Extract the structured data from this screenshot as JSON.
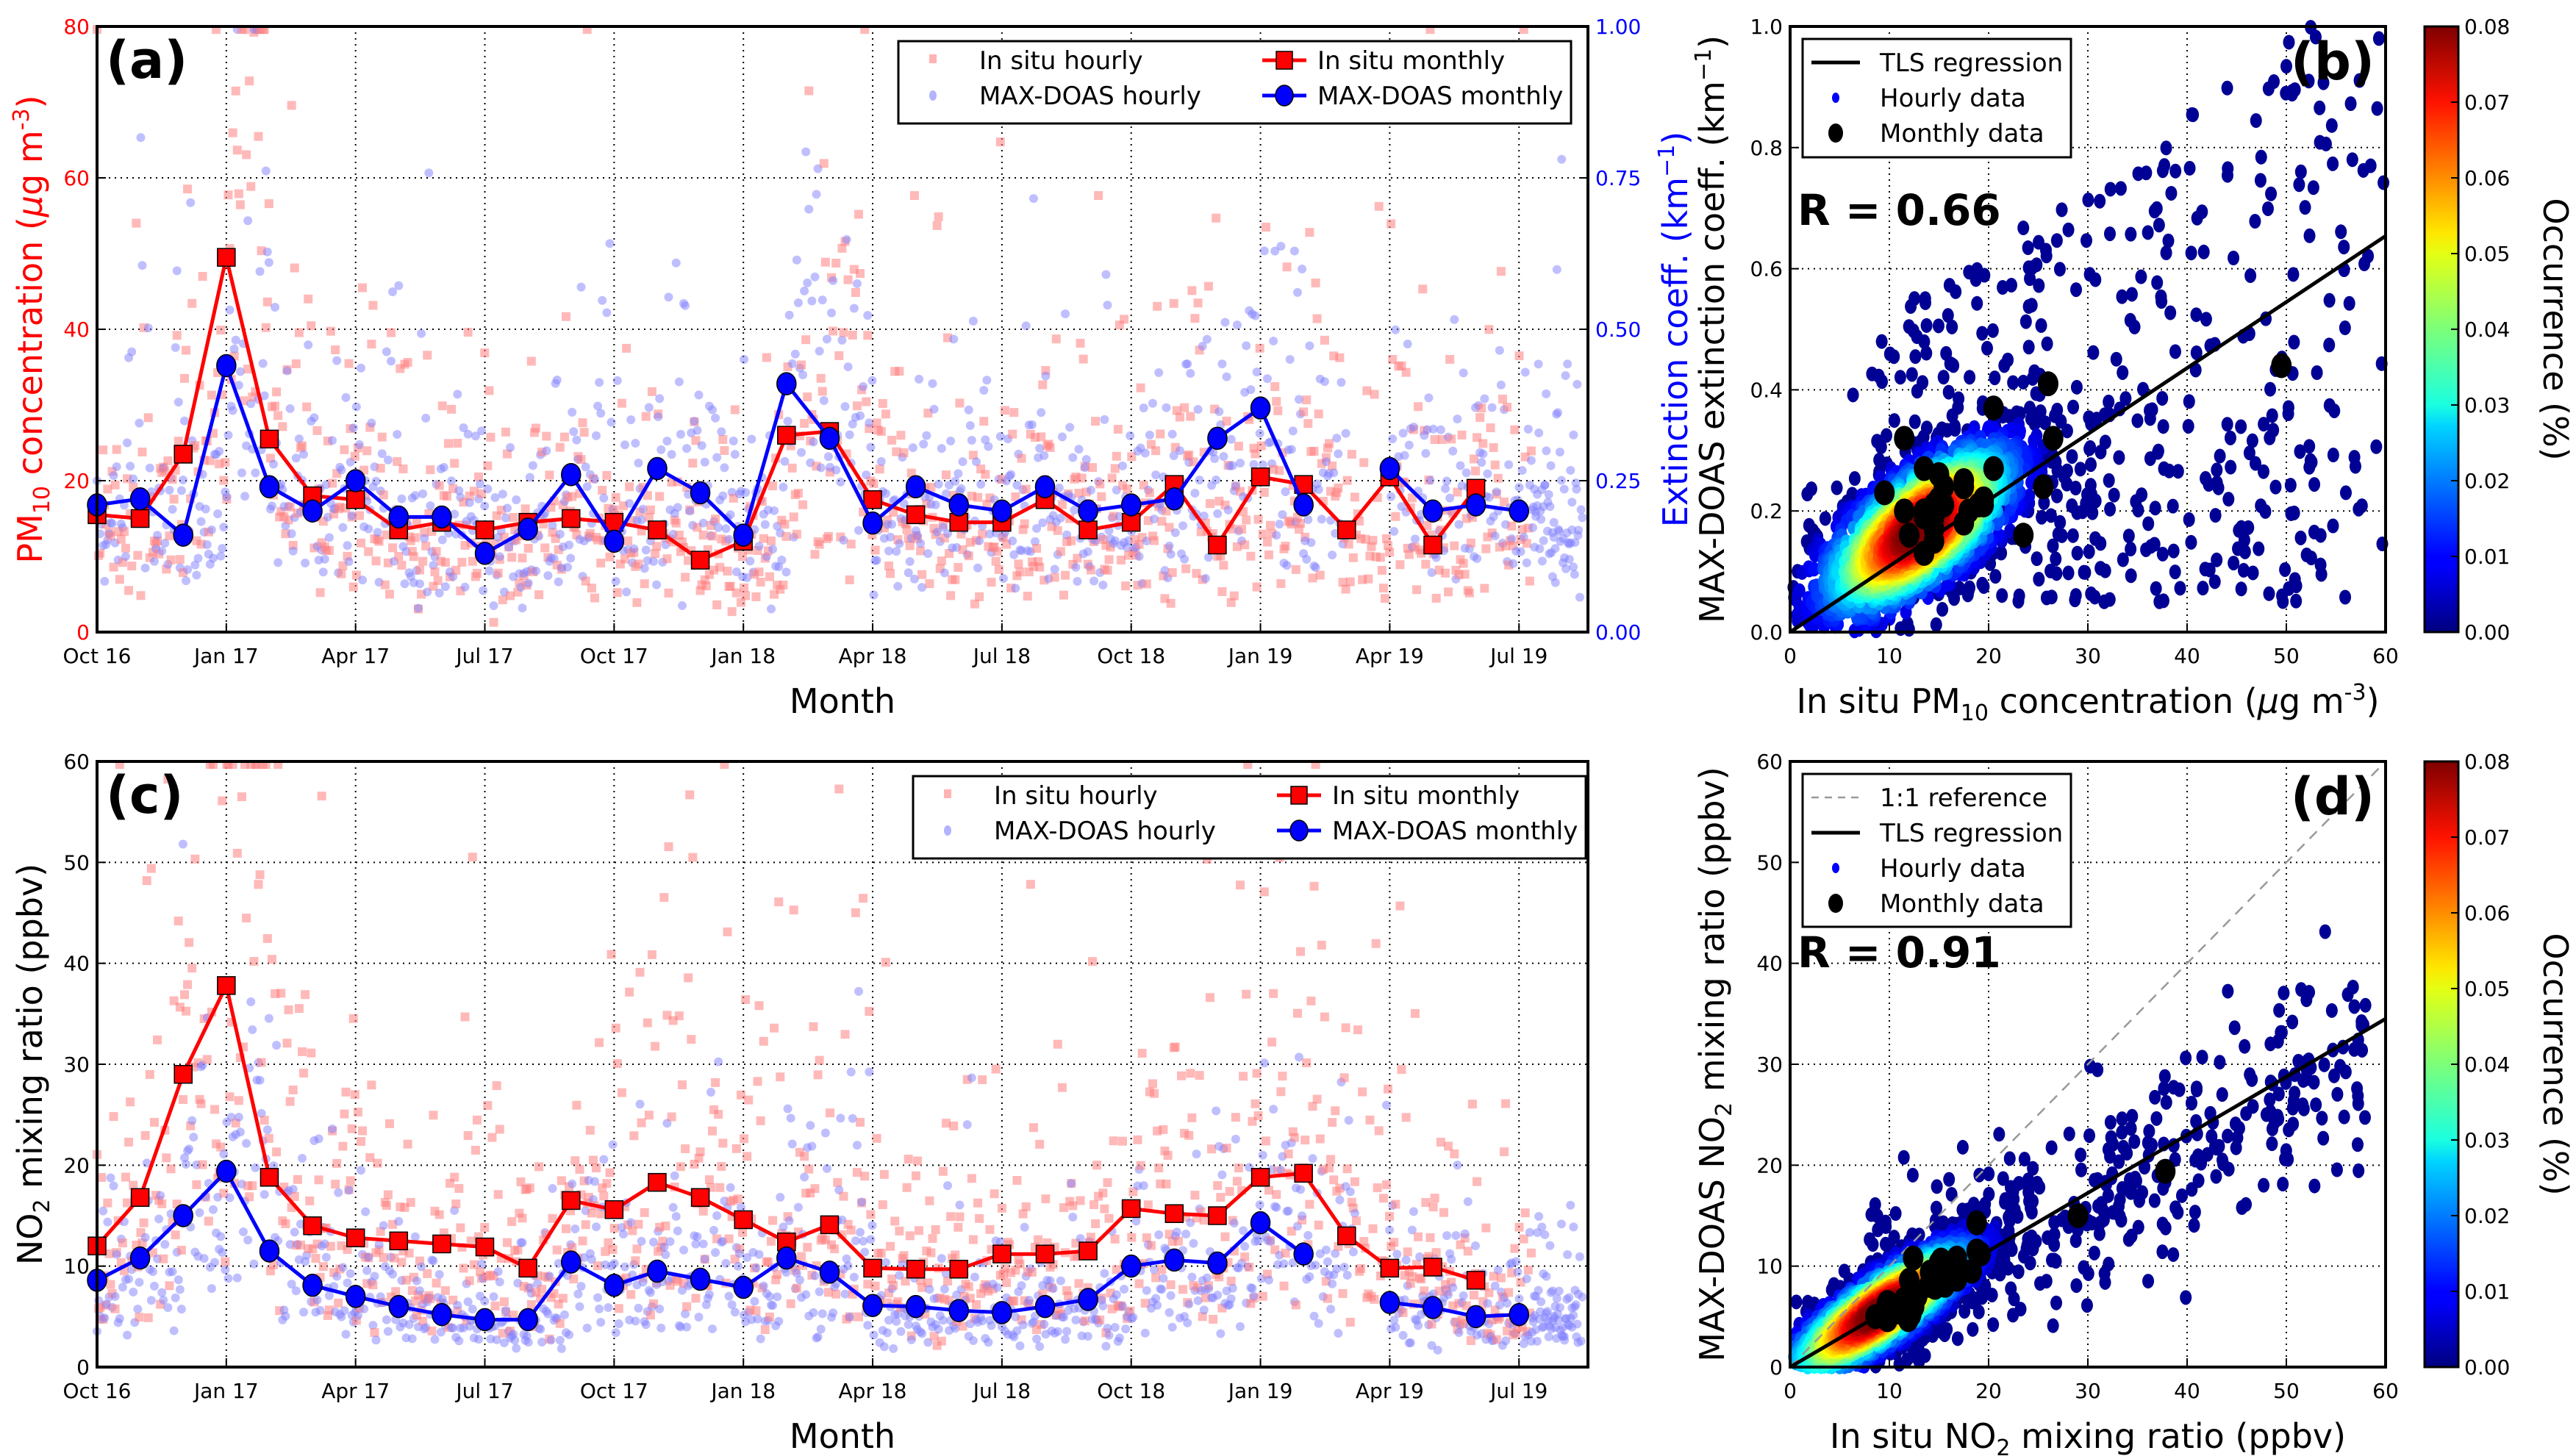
{
  "colors": {
    "insitu": "#ff0000",
    "insitu_hourly": "#ff8080",
    "maxdoas": "#0000ff",
    "maxdoas_hourly": "#8080ff",
    "tls": "#000000",
    "ref": "#999999",
    "monthly_scatter": "#000000"
  },
  "chart_data": [
    {
      "id": "a",
      "type": "line",
      "panel_label": "(a)",
      "xlabel": "Month",
      "ylabel_left": "PM10 concentration (µg m-3)",
      "ylabel_left_parts": {
        "pre": "PM",
        "sub": "10",
        "post": " concentration (",
        "mu": "µ",
        "unit": "g m",
        "sup": "-3",
        "close": ")"
      },
      "ylabel_right": "Extinction coeff. (km-1)",
      "ylabel_right_parts": {
        "pre": "Extinction coeff. (km",
        "sup": "−1",
        "close": ")"
      },
      "x_ticks": [
        "Oct 16",
        "Jan 17",
        "Apr 17",
        "Jul 17",
        "Oct 17",
        "Jan 18",
        "Apr 18",
        "Jul 18",
        "Oct 18",
        "Jan 19",
        "Apr 19",
        "Jul 19"
      ],
      "ylim_left": [
        0,
        80
      ],
      "yticks_left": [
        "0",
        "20",
        "40",
        "60",
        "80"
      ],
      "ylim_right": [
        0,
        1.0
      ],
      "yticks_right": [
        "0.00",
        "0.25",
        "0.50",
        "0.75",
        "1.00"
      ],
      "grid": true,
      "legend": {
        "placement": "top-right",
        "entries": [
          "In situ hourly",
          "MAX-DOAS hourly",
          "In situ monthly",
          "MAX-DOAS monthly"
        ]
      },
      "months": [
        "Oct 16",
        "Nov 16",
        "Dec 16",
        "Jan 17",
        "Feb 17",
        "Mar 17",
        "Apr 17",
        "May 17",
        "Jun 17",
        "Jul 17",
        "Aug 17",
        "Sep 17",
        "Oct 17",
        "Nov 17",
        "Dec 17",
        "Jan 18",
        "Feb 18",
        "Mar 18",
        "Apr 18",
        "May 18",
        "Jun 18",
        "Jul 18",
        "Aug 18",
        "Sep 18",
        "Oct 18",
        "Nov 18",
        "Dec 18",
        "Jan 19",
        "Feb 19",
        "Mar 19",
        "Apr 19",
        "May 19",
        "Jun 19",
        "Jul 19"
      ],
      "series": [
        {
          "name": "In situ monthly",
          "axis": "left",
          "values": [
            15.5,
            15,
            23.5,
            49.5,
            25.5,
            18,
            17.5,
            13.5,
            14.5,
            13.5,
            14.5,
            15,
            14.5,
            13.5,
            9.5,
            12,
            26,
            26.5,
            17.5,
            15.5,
            14.5,
            14.5,
            17.5,
            13.5,
            14.5,
            19.5,
            11.5,
            20.5,
            19.5,
            13.5,
            20.5,
            11.5,
            19,
            null
          ]
        },
        {
          "name": "MAX-DOAS monthly",
          "axis": "right",
          "values": [
            0.21,
            0.22,
            0.16,
            0.44,
            0.24,
            0.2,
            0.25,
            0.19,
            0.19,
            0.13,
            0.17,
            0.26,
            0.15,
            0.27,
            0.23,
            0.16,
            0.41,
            0.32,
            0.18,
            0.24,
            0.21,
            0.2,
            0.24,
            0.2,
            0.21,
            0.22,
            0.32,
            0.37,
            0.21,
            null,
            0.27,
            0.2,
            0.21,
            0.2
          ]
        }
      ]
    },
    {
      "id": "b",
      "type": "scatter",
      "panel_label": "(b)",
      "xlabel": "In situ PM10 concentration (µg m-3)",
      "xlabel_parts": {
        "pre": "In situ PM",
        "sub": "10",
        "post": " concentration (",
        "mu": "µ",
        "unit": "g m",
        "sup": "-3",
        "close": ")"
      },
      "ylabel": "MAX-DOAS extinction coeff. (km-1)",
      "ylabel_parts": {
        "pre": "MAX-DOAS extinction coeff. (km",
        "sup": "−1",
        "close": ")"
      },
      "xlim": [
        0,
        60
      ],
      "xticks": [
        "0",
        "10",
        "20",
        "30",
        "40",
        "50",
        "60"
      ],
      "ylim": [
        0,
        1.0
      ],
      "yticks": [
        "0.0",
        "0.2",
        "0.4",
        "0.6",
        "0.8",
        "1.0"
      ],
      "grid": true,
      "annotation": "R = 0.66",
      "tls_slope": 0.0109,
      "tls_intercept": 0.0,
      "legend": {
        "placement": "top-left",
        "entries": [
          "TLS regression",
          "Hourly data",
          "Monthly data"
        ]
      },
      "monthly_points": [
        [
          15.5,
          0.21
        ],
        [
          15,
          0.22
        ],
        [
          23.5,
          0.16
        ],
        [
          49.5,
          0.44
        ],
        [
          25.5,
          0.24
        ],
        [
          18,
          0.2
        ],
        [
          17.5,
          0.25
        ],
        [
          13.5,
          0.19
        ],
        [
          14.5,
          0.19
        ],
        [
          13.5,
          0.13
        ],
        [
          14.5,
          0.17
        ],
        [
          15,
          0.26
        ],
        [
          14.5,
          0.15
        ],
        [
          13.5,
          0.27
        ],
        [
          9.5,
          0.23
        ],
        [
          12,
          0.16
        ],
        [
          26,
          0.41
        ],
        [
          26.5,
          0.32
        ],
        [
          17.5,
          0.18
        ],
        [
          15.5,
          0.24
        ],
        [
          14.5,
          0.21
        ],
        [
          14.5,
          0.2
        ],
        [
          17.5,
          0.24
        ],
        [
          13.5,
          0.2
        ],
        [
          14.5,
          0.21
        ],
        [
          19.5,
          0.22
        ],
        [
          11.5,
          0.32
        ],
        [
          20.5,
          0.37
        ],
        [
          19.5,
          0.21
        ],
        [
          20.5,
          0.27
        ],
        [
          11.5,
          0.2
        ],
        [
          19,
          0.21
        ]
      ],
      "colorbar": {
        "label": "Occurrence (%)",
        "range": [
          0,
          0.08
        ],
        "ticks": [
          "0.00",
          "0.01",
          "0.02",
          "0.03",
          "0.04",
          "0.05",
          "0.06",
          "0.07",
          "0.08"
        ],
        "colormap": "jet"
      }
    },
    {
      "id": "c",
      "type": "line",
      "panel_label": "(c)",
      "xlabel": "Month",
      "ylabel": "NO2 mixing ratio (ppbv)",
      "ylabel_parts": {
        "pre": "NO",
        "sub": "2",
        "post": " mixing ratio (ppbv)"
      },
      "x_ticks": [
        "Oct 16",
        "Jan 17",
        "Apr 17",
        "Jul 17",
        "Oct 17",
        "Jan 18",
        "Apr 18",
        "Jul 18",
        "Oct 18",
        "Jan 19",
        "Apr 19",
        "Jul 19"
      ],
      "ylim": [
        0,
        60
      ],
      "yticks": [
        "0",
        "10",
        "20",
        "30",
        "40",
        "50",
        "60"
      ],
      "grid": true,
      "legend": {
        "placement": "top-right",
        "entries": [
          "In situ hourly",
          "MAX-DOAS hourly",
          "In situ monthly",
          "MAX-DOAS monthly"
        ]
      },
      "series": [
        {
          "name": "In situ monthly",
          "values": [
            12,
            16.8,
            29,
            37.8,
            18.8,
            14,
            12.8,
            12.5,
            12.2,
            11.9,
            9.8,
            16.5,
            15.6,
            18.3,
            16.8,
            14.6,
            12.4,
            14.1,
            9.8,
            9.7,
            9.7,
            11.2,
            11.2,
            11.5,
            15.7,
            15.2,
            15,
            18.8,
            19.2,
            13,
            9.8,
            9.9,
            8.6,
            null
          ]
        },
        {
          "name": "MAX-DOAS monthly",
          "values": [
            8.6,
            10.8,
            15,
            19.4,
            11.5,
            8.1,
            7.0,
            6.0,
            5.2,
            4.7,
            4.7,
            10.4,
            8.1,
            9.5,
            8.7,
            7.9,
            10.8,
            9.4,
            6.1,
            6.0,
            5.6,
            5.4,
            6.0,
            6.7,
            10.0,
            10.6,
            10.3,
            14.3,
            11.2,
            null,
            6.4,
            5.9,
            5.0,
            5.2
          ]
        }
      ]
    },
    {
      "id": "d",
      "type": "scatter",
      "panel_label": "(d)",
      "xlabel": "In situ NO2 mixing ratio (ppbv)",
      "xlabel_parts": {
        "pre": "In situ NO",
        "sub": "2",
        "post": " mixing ratio (ppbv)"
      },
      "ylabel": "MAX-DOAS NO2 mixing ratio (ppbv)",
      "ylabel_parts": {
        "pre": "MAX-DOAS NO",
        "sub": "2",
        "post": " mixing ratio (ppbv)"
      },
      "xlim": [
        0,
        60
      ],
      "xticks": [
        "0",
        "10",
        "20",
        "30",
        "40",
        "50",
        "60"
      ],
      "ylim": [
        0,
        60
      ],
      "yticks": [
        "0",
        "10",
        "20",
        "30",
        "40",
        "50",
        "60"
      ],
      "grid": true,
      "annotation": "R = 0.91",
      "tls_slope": 0.575,
      "tls_intercept": 0.0,
      "legend": {
        "placement": "top-left",
        "entries": [
          "1:1 reference",
          "TLS regression",
          "Hourly data",
          "Monthly data"
        ]
      },
      "monthly_points": [
        [
          12,
          8.6
        ],
        [
          16.8,
          10.8
        ],
        [
          29,
          15
        ],
        [
          37.8,
          19.4
        ],
        [
          18.8,
          11.5
        ],
        [
          14,
          8.1
        ],
        [
          12.8,
          7.0
        ],
        [
          12.5,
          6.0
        ],
        [
          12.2,
          5.2
        ],
        [
          11.9,
          4.7
        ],
        [
          9.8,
          4.7
        ],
        [
          16.5,
          10.4
        ],
        [
          15.6,
          8.1
        ],
        [
          18.3,
          9.5
        ],
        [
          16.8,
          8.7
        ],
        [
          14.6,
          7.9
        ],
        [
          12.4,
          10.8
        ],
        [
          14.1,
          9.4
        ],
        [
          9.8,
          6.1
        ],
        [
          9.7,
          6.0
        ],
        [
          9.7,
          5.6
        ],
        [
          11.2,
          5.4
        ],
        [
          11.2,
          6.0
        ],
        [
          11.5,
          6.7
        ],
        [
          15.7,
          10.0
        ],
        [
          15.2,
          10.6
        ],
        [
          15,
          10.3
        ],
        [
          18.8,
          14.3
        ],
        [
          19.2,
          11.2
        ],
        [
          9.8,
          6.4
        ],
        [
          9.9,
          5.9
        ],
        [
          8.6,
          5.0
        ]
      ],
      "colorbar": {
        "label": "Occurrence (%)",
        "range": [
          0,
          0.08
        ],
        "ticks": [
          "0.00",
          "0.01",
          "0.02",
          "0.03",
          "0.04",
          "0.05",
          "0.06",
          "0.07",
          "0.08"
        ],
        "colormap": "jet"
      }
    }
  ]
}
